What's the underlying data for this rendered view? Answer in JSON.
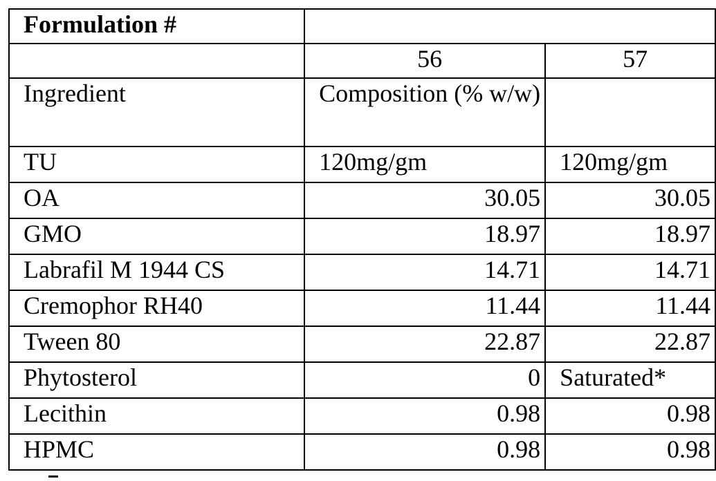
{
  "table": {
    "title": "Formulation #",
    "formulations": [
      "56",
      "57"
    ],
    "ingredient_header": "Ingredient",
    "composition_header": "Composition (% w/w)",
    "rows": [
      {
        "ingredient": "TU",
        "f56": "120mg/gm",
        "f57": "120mg/gm"
      },
      {
        "ingredient": "OA",
        "f56": "30.05",
        "f57": "30.05"
      },
      {
        "ingredient": "GMO",
        "f56": "18.97",
        "f57": "18.97"
      },
      {
        "ingredient": "Labrafil M 1944 CS",
        "f56": "14.71",
        "f57": "14.71"
      },
      {
        "ingredient": "Cremophor RH40",
        "f56": "11.44",
        "f57": "11.44"
      },
      {
        "ingredient": "Tween 80",
        "f56": "22.87",
        "f57": "22.87"
      },
      {
        "ingredient": "Phytosterol",
        "f56": "0",
        "f57": "Saturated*"
      },
      {
        "ingredient": "Lecithin",
        "f56": "0.98",
        "f57": "0.98"
      },
      {
        "ingredient": "HPMC",
        "f56": "0.98",
        "f57": "0.98"
      }
    ]
  }
}
